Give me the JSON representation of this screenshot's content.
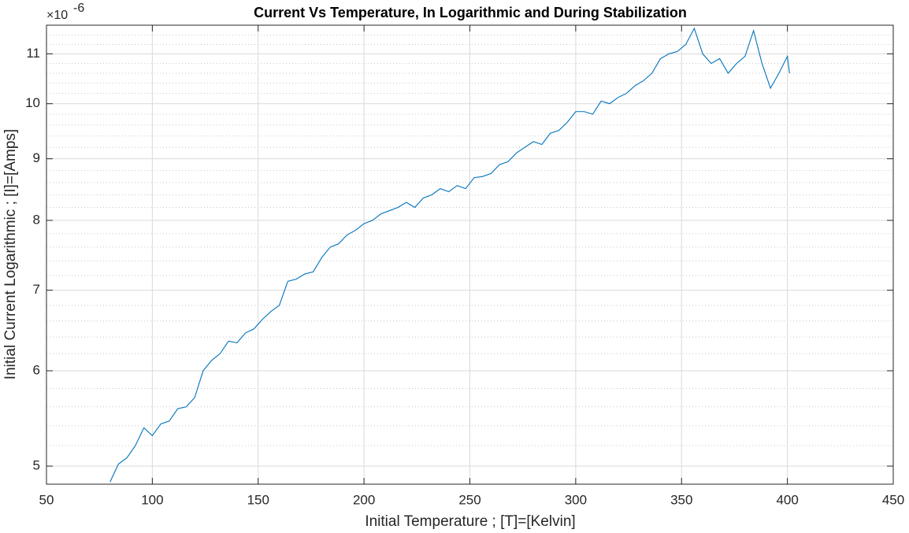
{
  "chart_data": {
    "type": "line",
    "title": "Current Vs Temperature, In Logarithmic and During Stabilization",
    "xlabel": "Initial Temperature ; [T]=[Kelvin]",
    "ylabel": "Initial Current Logarithmic ; [I]=[Amps]",
    "y_exponent": {
      "base": "×10",
      "power": "-6"
    },
    "yscale": "log",
    "grid": true,
    "minor_grid": true,
    "xlim": [
      50,
      450
    ],
    "xticks": [
      50,
      100,
      150,
      200,
      250,
      300,
      350,
      400,
      450
    ],
    "ylim": [
      4.83,
      11.62
    ],
    "yticks": [
      5,
      6,
      7,
      8,
      9,
      10,
      11
    ],
    "yminorticks": [
      5.2,
      5.4,
      5.6,
      5.8,
      6.2,
      6.4,
      6.6,
      6.8,
      7.2,
      7.4,
      7.6,
      7.8,
      8.2,
      8.4,
      8.6,
      8.8,
      9.2,
      9.4,
      9.6,
      9.8,
      10.2,
      10.4,
      10.6,
      10.8,
      11.2,
      11.4
    ],
    "x": [
      80,
      84,
      88,
      92,
      96,
      100,
      104,
      108,
      112,
      116,
      120,
      124,
      128,
      132,
      136,
      140,
      144,
      148,
      152,
      156,
      160,
      164,
      168,
      172,
      176,
      180,
      184,
      188,
      192,
      196,
      200,
      204,
      208,
      212,
      216,
      220,
      224,
      228,
      232,
      236,
      240,
      244,
      248,
      252,
      256,
      260,
      264,
      268,
      272,
      276,
      280,
      284,
      288,
      292,
      296,
      300,
      304,
      308,
      312,
      316,
      320,
      324,
      328,
      332,
      336,
      340,
      344,
      348,
      352,
      356,
      360,
      364,
      368,
      372,
      376,
      380,
      384,
      388,
      392,
      396,
      400,
      401
    ],
    "series": [
      {
        "color": "#0072bd",
        "values": [
          4.85,
          5.02,
          5.08,
          5.2,
          5.38,
          5.3,
          5.42,
          5.45,
          5.58,
          5.6,
          5.7,
          6.0,
          6.12,
          6.2,
          6.35,
          6.33,
          6.45,
          6.5,
          6.62,
          6.72,
          6.8,
          7.12,
          7.15,
          7.22,
          7.25,
          7.45,
          7.6,
          7.65,
          7.78,
          7.85,
          7.95,
          8.0,
          8.1,
          8.15,
          8.2,
          8.28,
          8.2,
          8.35,
          8.4,
          8.5,
          8.45,
          8.55,
          8.5,
          8.68,
          8.7,
          8.75,
          8.9,
          8.95,
          9.1,
          9.2,
          9.3,
          9.25,
          9.45,
          9.5,
          9.65,
          9.85,
          9.85,
          9.8,
          10.05,
          10.0,
          10.12,
          10.2,
          10.35,
          10.45,
          10.6,
          10.9,
          11.0,
          11.05,
          11.2,
          11.55,
          11.0,
          10.8,
          10.9,
          10.6,
          10.8,
          10.95,
          11.5,
          10.8,
          10.3,
          10.6,
          10.95,
          10.6
        ]
      }
    ]
  }
}
